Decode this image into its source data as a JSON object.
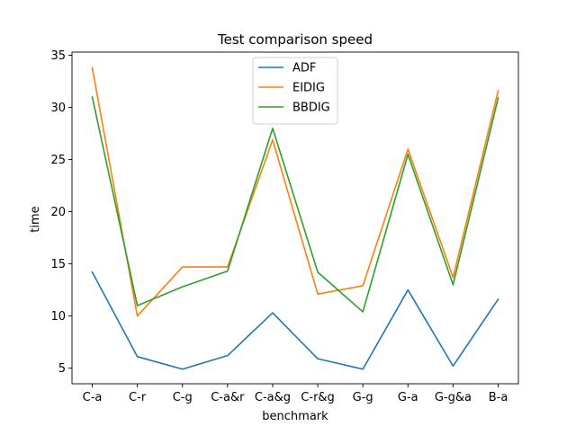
{
  "chart_data": {
    "type": "line",
    "title": "Test comparison speed",
    "xlabel": "benchmark",
    "ylabel": "time",
    "categories": [
      "C-a",
      "C-r",
      "C-g",
      "C-a&r",
      "C-a&g",
      "C-r&g",
      "G-g",
      "G-a",
      "G-g&a",
      "B-a"
    ],
    "ylim": [
      3.5,
      35.3
    ],
    "yticks": [
      5,
      10,
      15,
      20,
      25,
      30,
      35
    ],
    "grid": false,
    "legend_position": "top-center",
    "series": [
      {
        "name": "ADF",
        "color": "#1f77b4",
        "values": [
          14.2,
          6.1,
          4.9,
          6.2,
          10.3,
          5.9,
          4.9,
          12.5,
          5.2,
          11.6
        ]
      },
      {
        "name": "EIDIG",
        "color": "#ff7f0e",
        "values": [
          33.8,
          10.0,
          14.7,
          14.7,
          26.9,
          12.1,
          12.9,
          26.0,
          13.7,
          31.6
        ]
      },
      {
        "name": "BBDIG",
        "color": "#2ca02c",
        "values": [
          31.0,
          11.0,
          12.8,
          14.3,
          28.0,
          14.2,
          10.4,
          25.5,
          13.0,
          30.9
        ]
      }
    ]
  }
}
